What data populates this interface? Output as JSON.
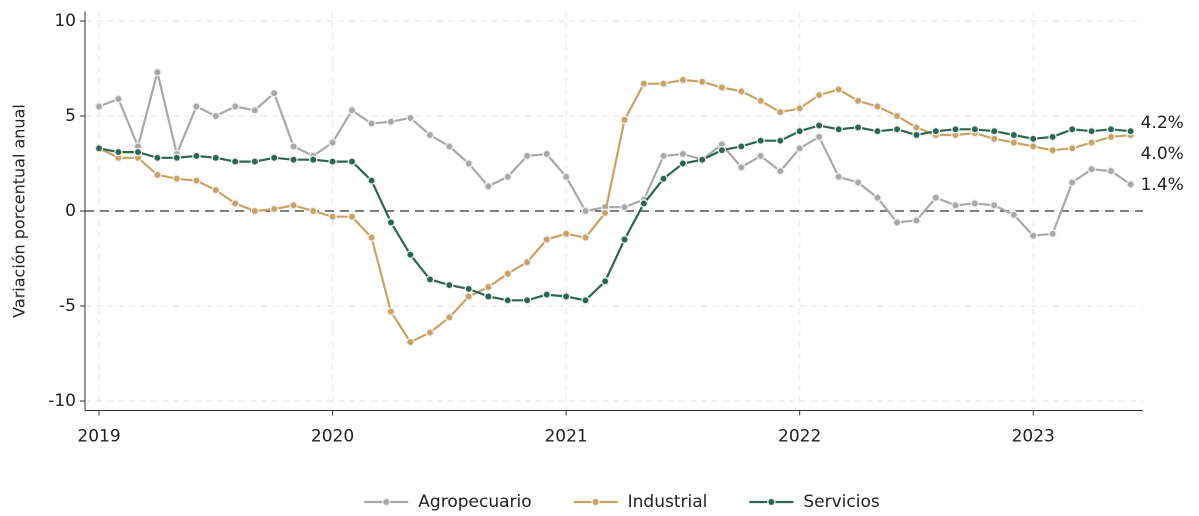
{
  "chart_data": {
    "type": "line",
    "ylabel": "Variación porcentual anual",
    "x": [
      2019,
      2019.083,
      2019.167,
      2019.25,
      2019.333,
      2019.417,
      2019.5,
      2019.583,
      2019.667,
      2019.75,
      2019.833,
      2019.917,
      2020,
      2020.083,
      2020.167,
      2020.25,
      2020.333,
      2020.417,
      2020.5,
      2020.583,
      2020.667,
      2020.75,
      2020.833,
      2020.917,
      2021,
      2021.083,
      2021.167,
      2021.25,
      2021.333,
      2021.417,
      2021.5,
      2021.583,
      2021.667,
      2021.75,
      2021.833,
      2021.917,
      2022,
      2022.083,
      2022.167,
      2022.25,
      2022.333,
      2022.417,
      2022.5,
      2022.583,
      2022.667,
      2022.75,
      2022.833,
      2022.917,
      2023,
      2023.083,
      2023.167,
      2023.25,
      2023.333,
      2023.417
    ],
    "series": [
      {
        "name": "Agropecuario",
        "color": "#a8a8a8",
        "values": [
          5.5,
          5.9,
          3.4,
          7.3,
          3.0,
          5.5,
          5.0,
          5.5,
          5.3,
          6.2,
          3.4,
          2.9,
          3.6,
          5.3,
          4.6,
          4.7,
          4.9,
          4.0,
          3.4,
          2.5,
          1.3,
          1.8,
          2.9,
          3.0,
          1.8,
          0.0,
          0.2,
          0.2,
          0.6,
          2.9,
          3.0,
          2.7,
          3.5,
          2.3,
          2.9,
          2.1,
          3.3,
          3.9,
          1.8,
          1.5,
          0.7,
          -0.6,
          -0.5,
          0.7,
          0.3,
          0.4,
          0.3,
          -0.2,
          -1.3,
          -1.2,
          1.5,
          2.2,
          2.1,
          1.4
        ],
        "value_labels": [
          null,
          null,
          null,
          null,
          null,
          null,
          null,
          null,
          null,
          null,
          null,
          null,
          null,
          null,
          null,
          null,
          null,
          null,
          null,
          null,
          null,
          null,
          null,
          null,
          null,
          null,
          null,
          null,
          null,
          null,
          null,
          null,
          null,
          null,
          null,
          null,
          null,
          null,
          null,
          null,
          null,
          null,
          null,
          null,
          null,
          null,
          null,
          null,
          null,
          null,
          null,
          null,
          null,
          "1.4%"
        ]
      },
      {
        "name": "Industrial",
        "color": "#c9a264",
        "values": [
          3.3,
          2.8,
          2.8,
          1.9,
          1.7,
          1.6,
          1.1,
          0.4,
          0.0,
          0.1,
          0.3,
          0.0,
          -0.3,
          -0.3,
          -1.4,
          -5.3,
          -6.9,
          -6.4,
          -5.6,
          -4.5,
          -4.0,
          -3.3,
          -2.7,
          -1.5,
          -1.2,
          -1.4,
          -0.1,
          4.8,
          6.7,
          6.7,
          6.9,
          6.8,
          6.5,
          6.3,
          5.8,
          5.2,
          5.4,
          6.1,
          6.4,
          5.8,
          5.5,
          5.0,
          4.4,
          4.0,
          4.0,
          4.1,
          3.8,
          3.6,
          3.4,
          3.2,
          3.3,
          3.6,
          3.9,
          4.0
        ],
        "value_labels": [
          null,
          null,
          null,
          null,
          null,
          null,
          null,
          null,
          null,
          null,
          null,
          null,
          null,
          null,
          null,
          null,
          null,
          null,
          null,
          null,
          null,
          null,
          null,
          null,
          null,
          null,
          null,
          null,
          null,
          null,
          null,
          null,
          null,
          null,
          null,
          null,
          null,
          null,
          null,
          null,
          null,
          null,
          null,
          null,
          null,
          null,
          null,
          null,
          null,
          null,
          null,
          null,
          null,
          "4.0%"
        ]
      },
      {
        "name": "Servicios",
        "color": "#2a6651",
        "values": [
          3.3,
          3.1,
          3.1,
          2.8,
          2.8,
          2.9,
          2.8,
          2.6,
          2.6,
          2.8,
          2.7,
          2.7,
          2.6,
          2.6,
          1.6,
          -0.6,
          -2.3,
          -3.6,
          -3.9,
          -4.1,
          -4.5,
          -4.7,
          -4.7,
          -4.4,
          -4.5,
          -4.7,
          -3.7,
          -1.5,
          0.4,
          1.7,
          2.5,
          2.7,
          3.2,
          3.4,
          3.7,
          3.7,
          4.2,
          4.5,
          4.3,
          4.4,
          4.2,
          4.3,
          4.0,
          4.2,
          4.3,
          4.3,
          4.2,
          4.0,
          3.8,
          3.9,
          4.3,
          4.2,
          4.3,
          4.2
        ],
        "value_labels": [
          null,
          null,
          null,
          null,
          null,
          null,
          null,
          null,
          null,
          null,
          null,
          null,
          null,
          null,
          null,
          null,
          null,
          null,
          null,
          null,
          null,
          null,
          null,
          null,
          null,
          null,
          null,
          null,
          null,
          null,
          null,
          null,
          null,
          null,
          null,
          null,
          null,
          null,
          null,
          null,
          null,
          null,
          null,
          null,
          null,
          null,
          null,
          null,
          null,
          null,
          null,
          null,
          null,
          "4.2%"
        ]
      }
    ],
    "xlim": [
      2018.94,
      2023.47
    ],
    "xticks": [
      2019,
      2020,
      2021,
      2022,
      2023
    ],
    "ylim": [
      -10.5,
      10.5
    ],
    "yticks": [
      -10,
      -5,
      0,
      5,
      10
    ],
    "reference_line": 0,
    "grid": true,
    "legend": "bottom"
  }
}
